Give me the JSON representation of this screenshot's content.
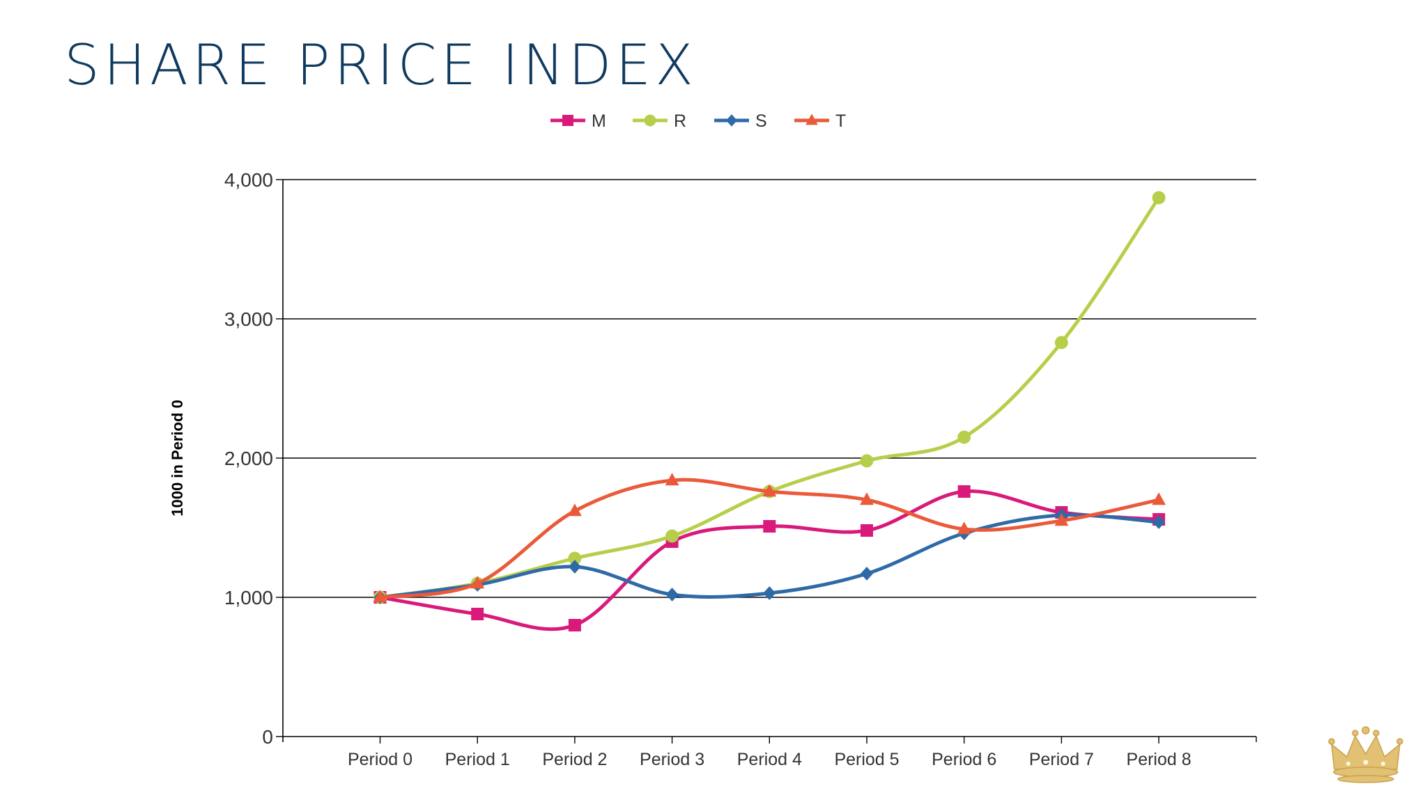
{
  "slide": {
    "title": "SHARE PRICE INDEX"
  },
  "chart_data": {
    "type": "line",
    "title": "",
    "xlabel": "",
    "ylabel": "1000 in Period 0",
    "ylim": [
      0,
      4000
    ],
    "yticks": [
      0,
      1000,
      2000,
      3000,
      4000
    ],
    "ytick_labels": [
      "0",
      "1,000",
      "2,000",
      "3,000",
      "4,000"
    ],
    "grid": true,
    "legend_position": "top-center",
    "categories": [
      "Period 0",
      "Period 1",
      "Period 2",
      "Period 3",
      "Period 4",
      "Period 5",
      "Period 6",
      "Period 7",
      "Period 8"
    ],
    "series": [
      {
        "name": "M",
        "color": "#d91a7a",
        "marker": "square",
        "values": [
          1000,
          880,
          800,
          1400,
          1510,
          1480,
          1760,
          1610,
          1560
        ]
      },
      {
        "name": "R",
        "color": "#b5cf4a",
        "marker": "circle",
        "values": [
          1000,
          1100,
          1280,
          1440,
          1760,
          1980,
          2150,
          2830,
          3870
        ]
      },
      {
        "name": "S",
        "color": "#2f6aa8",
        "marker": "diamond",
        "values": [
          1000,
          1090,
          1220,
          1020,
          1030,
          1170,
          1460,
          1590,
          1540
        ]
      },
      {
        "name": "T",
        "color": "#ea5a3a",
        "marker": "triangle",
        "values": [
          1000,
          1100,
          1620,
          1840,
          1760,
          1700,
          1490,
          1550,
          1700
        ]
      }
    ]
  },
  "logo": {
    "icon": "crown-icon",
    "color": "#e2c174"
  }
}
